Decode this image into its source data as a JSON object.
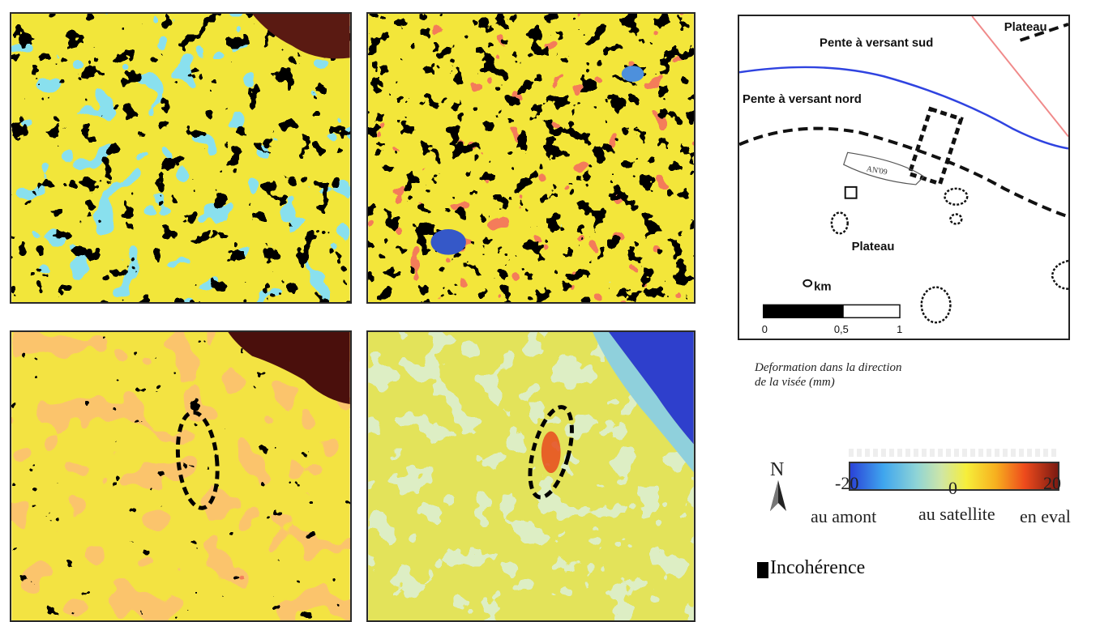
{
  "map": {
    "labels": {
      "slope_south": "Pente à versant sud",
      "slope_north": "Pente à versant nord",
      "plateau_top": "Plateau",
      "plateau": "Plateau",
      "scale_unit": "km",
      "scale_ticks": [
        "0",
        "0,5",
        "1"
      ],
      "feature": "AN'09"
    },
    "colors": {
      "river": "#2f43e0",
      "road": "#f08a8a",
      "dashed": "#111111"
    }
  },
  "legend": {
    "title_line1": "Deformation dans la direction",
    "title_line2": "de la visée (mm)",
    "min": "-20",
    "mid": "0",
    "max": "20",
    "low_label": "au amont",
    "mid_label": "au satellite",
    "high_label": "en eval",
    "incoherence_label": "Incohérence",
    "north_letter": "N",
    "ramp_colors": [
      "#2a43d8",
      "#3fa6ee",
      "#8fd4d6",
      "#cfe6a6",
      "#f6ee3a",
      "#f7b01f",
      "#ee4b1c",
      "#7c1a12"
    ]
  },
  "panels": [
    {
      "name": "interferogram-1"
    },
    {
      "name": "interferogram-2"
    },
    {
      "name": "interferogram-3"
    },
    {
      "name": "interferogram-4"
    }
  ]
}
